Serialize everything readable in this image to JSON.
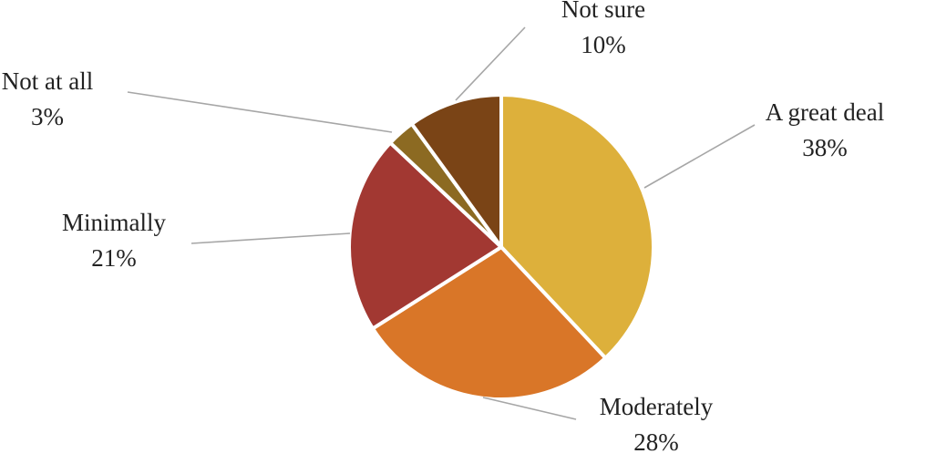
{
  "chart_data": {
    "type": "pie",
    "title": "",
    "legend": "none",
    "start_category": "A great deal",
    "direction": "clockwise",
    "slices": [
      {
        "label": "A great deal",
        "value": 38,
        "value_label": "38%",
        "color": "#ddb03b"
      },
      {
        "label": "Moderately",
        "value": 28,
        "value_label": "28%",
        "color": "#d97628"
      },
      {
        "label": "Minimally",
        "value": 21,
        "value_label": "21%",
        "color": "#a23832"
      },
      {
        "label": "Not at all",
        "value": 3,
        "value_label": "3%",
        "color": "#8c6a22"
      },
      {
        "label": "Not sure",
        "value": 10,
        "value_label": "10%",
        "color": "#7a4416"
      }
    ]
  }
}
